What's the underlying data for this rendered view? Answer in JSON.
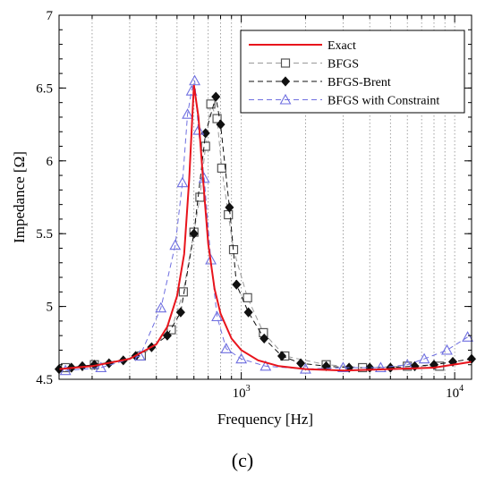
{
  "caption": "(c)",
  "chart_data": {
    "type": "line",
    "xlabel": "Frequency [Hz]",
    "ylabel": "Impedance [Ω]",
    "xscale": "log",
    "xlim": [
      140,
      12000
    ],
    "ylim": [
      4.5,
      7
    ],
    "y_ticks": [
      4.5,
      5,
      5.5,
      6,
      6.5,
      7
    ],
    "y_tick_labels": [
      "4.5",
      "5",
      "5.5",
      "6",
      "6.5",
      "7"
    ],
    "x_ticks": [
      {
        "value": 1000,
        "base": "10",
        "exp": "3"
      },
      {
        "value": 10000,
        "base": "10",
        "exp": "4"
      }
    ],
    "grid": "vertical dotted at log decades",
    "legend_position": "top-right",
    "series": [
      {
        "name": "Exact",
        "style": "solid",
        "color": "#e8141c",
        "marker": "none",
        "x": [
          140,
          200,
          300,
          400,
          450,
          500,
          540,
          570,
          600,
          630,
          660,
          700,
          750,
          800,
          900,
          1000,
          1200,
          1500,
          2000,
          3000,
          5000,
          8000,
          12000
        ],
        "y": [
          4.57,
          4.59,
          4.64,
          4.74,
          4.86,
          5.07,
          5.36,
          5.87,
          6.52,
          6.3,
          5.9,
          5.43,
          5.12,
          4.95,
          4.78,
          4.7,
          4.63,
          4.59,
          4.57,
          4.56,
          4.57,
          4.58,
          4.62
        ]
      },
      {
        "name": "BFGS",
        "style": "dashed",
        "color": "#9a9a9a",
        "marker": "square",
        "x": [
          150,
          205,
          340,
          470,
          535,
          600,
          640,
          680,
          720,
          770,
          810,
          870,
          920,
          1070,
          1270,
          1600,
          2500,
          3700,
          6000,
          8500
        ],
        "y": [
          4.58,
          4.6,
          4.66,
          4.84,
          5.1,
          5.51,
          5.75,
          6.1,
          6.39,
          6.29,
          5.95,
          5.63,
          5.39,
          5.06,
          4.82,
          4.66,
          4.6,
          4.58,
          4.59,
          4.59
        ]
      },
      {
        "name": "BFGS-Brent",
        "style": "dashed",
        "color": "#111111",
        "marker": "diamond",
        "x": [
          140,
          160,
          180,
          205,
          240,
          280,
          320,
          380,
          450,
          520,
          600,
          680,
          760,
          800,
          880,
          950,
          1080,
          1280,
          1550,
          1900,
          2500,
          3200,
          4000,
          5000,
          6500,
          8000,
          9800,
          12000
        ],
        "y": [
          4.57,
          4.58,
          4.59,
          4.6,
          4.61,
          4.63,
          4.66,
          4.72,
          4.8,
          4.96,
          5.5,
          6.19,
          6.44,
          6.25,
          5.68,
          5.15,
          4.96,
          4.78,
          4.66,
          4.61,
          4.59,
          4.58,
          4.58,
          4.58,
          4.59,
          4.6,
          4.62,
          4.64
        ]
      },
      {
        "name": "BFGS with Constraint",
        "style": "dashed",
        "color": "#6f6fe0",
        "marker": "triangle",
        "x": [
          150,
          220,
          335,
          420,
          490,
          530,
          560,
          585,
          605,
          630,
          670,
          720,
          770,
          850,
          1000,
          1300,
          2000,
          3000,
          4500,
          6000,
          7200,
          9200,
          11500
        ],
        "y": [
          4.56,
          4.58,
          4.66,
          4.99,
          5.42,
          5.85,
          6.32,
          6.48,
          6.55,
          6.21,
          5.88,
          5.32,
          4.93,
          4.71,
          4.64,
          4.59,
          4.57,
          4.58,
          4.58,
          4.6,
          4.64,
          4.7,
          4.79
        ]
      }
    ]
  }
}
